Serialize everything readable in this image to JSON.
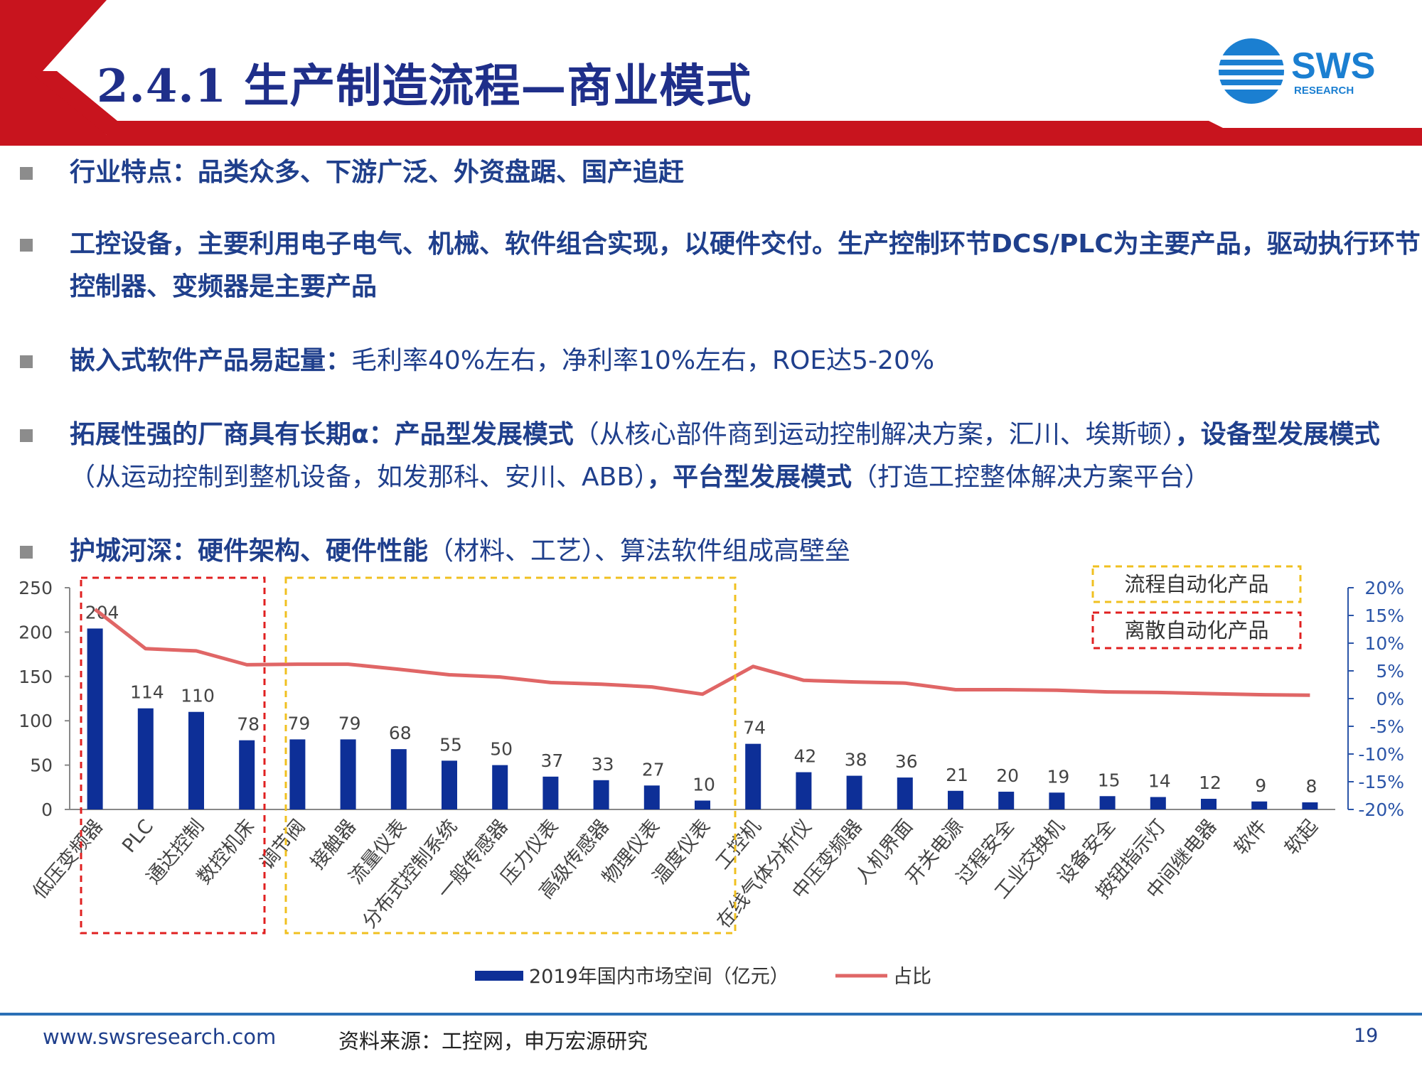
{
  "header": {
    "title": "2.4.1 生产制造流程—商业模式",
    "logo_text": "SWS",
    "logo_subtext": "RESEARCH"
  },
  "bullets": [
    {
      "parts": [
        {
          "text": "行业特点：品类众多、下游广泛、外资盘踞、国产追赶",
          "bold": true
        }
      ]
    },
    {
      "parts": [
        {
          "text": "工控设备，主要利用电子电气、机械、软件组合实现，以硬件交付。生产控制环节DCS/PLC为主要产品，驱动执行环节控制器、变频器是主要产品",
          "bold": true
        }
      ]
    },
    {
      "parts": [
        {
          "text": "嵌入式软件产品易起量：",
          "bold": true
        },
        {
          "text": "毛利率40%左右，净利率10%左右，ROE达5-20%",
          "bold": false
        }
      ]
    },
    {
      "parts": [
        {
          "text": "拓展性强的厂商具有长期α：产品型发展模式",
          "bold": true
        },
        {
          "text": "（从核心部件商到运动控制解决方案，汇川、埃斯顿）",
          "bold": false
        },
        {
          "text": "，设备型发展模式",
          "bold": true
        },
        {
          "text": "（从运动控制到整机设备，如发那科、安川、ABB）",
          "bold": false
        },
        {
          "text": "，平台型发展模式",
          "bold": true
        },
        {
          "text": "（打造工控整体解决方案平台）",
          "bold": false
        }
      ]
    },
    {
      "parts": [
        {
          "text": "护城河深：硬件架构、硬件性能",
          "bold": true
        },
        {
          "text": "（材料、工艺）、算法软件组成高壁垒",
          "bold": false
        }
      ]
    }
  ],
  "chart_data": {
    "type": "bar",
    "categories": [
      "低压变频器",
      "PLC",
      "通达控制",
      "数控机床",
      "调节阀",
      "接触器",
      "流量仪表",
      "分布式控制系统",
      "一般传感器",
      "压力仪表",
      "高级传感器",
      "物理仪表",
      "温度仪表",
      "工控机",
      "在线气体分析仪",
      "中压变频器",
      "人机界面",
      "开关电源",
      "过程安全",
      "工业交换机",
      "设备安全",
      "按钮指示灯",
      "中间继电器",
      "软件",
      "软起"
    ],
    "series": [
      {
        "name": "2019年国内市场空间（亿元）",
        "type": "bar",
        "axis": "left",
        "color": "#0d2f97",
        "values": [
          204,
          114,
          110,
          78,
          79,
          79,
          68,
          55,
          50,
          37,
          33,
          27,
          10,
          74,
          42,
          38,
          36,
          21,
          20,
          19,
          15,
          14,
          12,
          9,
          8
        ]
      },
      {
        "name": "占比",
        "type": "line",
        "axis": "right",
        "color": "#e06666",
        "values": [
          16.1,
          9.0,
          8.6,
          6.1,
          6.2,
          6.2,
          5.3,
          4.3,
          3.9,
          2.9,
          2.6,
          2.1,
          0.8,
          5.8,
          3.3,
          3.0,
          2.8,
          1.6,
          1.6,
          1.5,
          1.2,
          1.1,
          0.9,
          0.7,
          0.6
        ]
      }
    ],
    "left_axis": {
      "ylim": [
        0,
        250
      ],
      "ticks": [
        "0",
        "50",
        "100",
        "150",
        "200",
        "250"
      ]
    },
    "right_axis": {
      "ylim": [
        -20,
        20
      ],
      "ticks": [
        "-20%",
        "-15%",
        "-10%",
        "-5%",
        "0%",
        "5%",
        "10%",
        "15%",
        "20%"
      ]
    },
    "groups": [
      {
        "label": "离散自动化产品",
        "color": "#e02020",
        "from": 0,
        "to": 3
      },
      {
        "label": "流程自动化产品",
        "color": "#f0c020",
        "from": 4,
        "to": 12
      }
    ],
    "legend_position": "bottom"
  },
  "footer": {
    "url": "www.swsresearch.com",
    "source": "资料来源：工控网，申万宏源研究",
    "page": "19"
  }
}
